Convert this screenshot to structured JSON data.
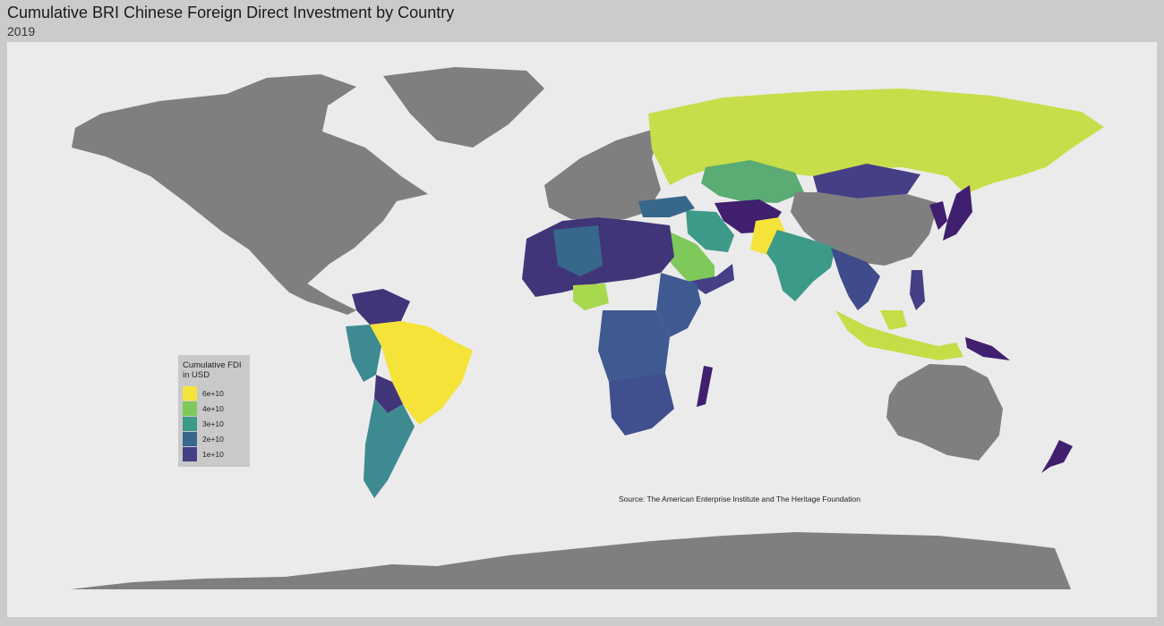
{
  "header": {
    "title": "Cumulative BRI Chinese Foreign Direct Investment by Country",
    "subtitle": "2019"
  },
  "legend": {
    "title_line1": "Cumulative FDI",
    "title_line2": "in USD",
    "items": [
      {
        "label": "6e+10",
        "color": "#f5e33a"
      },
      {
        "label": "4e+10",
        "color": "#7fc95a"
      },
      {
        "label": "3e+10",
        "color": "#3d9a88"
      },
      {
        "label": "2e+10",
        "color": "#37688c"
      },
      {
        "label": "1e+10",
        "color": "#453f86"
      }
    ]
  },
  "source": "Source: The American Enterprise Institute and The Heritage Foundation",
  "map": {
    "background": "#ebebeb",
    "no_data_color": "#7f7f7f",
    "region_fills": {
      "brazil": "#f5e33a",
      "pakistan": "#f5e33a",
      "russia": "#c8dd4a",
      "indonesia_malaysia": "#c3de47",
      "saudi_arabia": "#7fc95a",
      "nigeria": "#a8d84e",
      "kazakhstan": "#5aac74",
      "iran": "#3d9a88",
      "india": "#3d9a88",
      "argentina": "#3d8a90",
      "peru": "#3d8a90",
      "west_africa_inland": "#37688c",
      "dr_congo": "#3f5a90",
      "south_africa": "#40508e",
      "mongolia": "#453f86",
      "east_africa": "#3f5a90",
      "north_africa": "#41357a",
      "bolivia": "#41357a",
      "venezuela": "#41357a",
      "southeast_asia": "#3f4b8a",
      "madagascar": "#401f6f",
      "new_zealand": "#401f6f",
      "png": "#401f6f",
      "korea_japan": "#401f6f",
      "afghanistan": "#401f6f"
    }
  }
}
